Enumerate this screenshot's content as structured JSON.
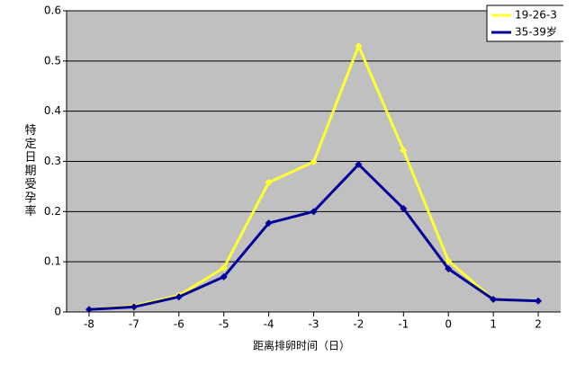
{
  "chart_data": {
    "type": "line",
    "xlabel": "距离排卵时间（日）",
    "ylabel": "特定日期受孕率",
    "x": [
      -8,
      -7,
      -6,
      -5,
      -4,
      -3,
      -2,
      -1,
      0,
      1,
      2
    ],
    "series": [
      {
        "name": "19-26-3",
        "color": "#ffff33",
        "values": [
          0.005,
          0.012,
          0.033,
          0.088,
          0.258,
          0.299,
          0.53,
          0.322,
          0.102,
          0.025,
          0.022
        ]
      },
      {
        "name": "35-39岁",
        "color": "#000099",
        "values": [
          0.005,
          0.01,
          0.03,
          0.07,
          0.177,
          0.2,
          0.294,
          0.206,
          0.086,
          0.025,
          0.022
        ]
      }
    ],
    "xlim": [
      -8.5,
      2.5
    ],
    "xticks": [
      -8,
      -7,
      -6,
      -5,
      -4,
      -3,
      -2,
      -1,
      0,
      1,
      2
    ],
    "ylim": [
      0,
      0.6
    ],
    "yticks": [
      0,
      0.1,
      0.2,
      0.3,
      0.4,
      0.5,
      0.6
    ],
    "grid": true,
    "legend": "upper right"
  }
}
